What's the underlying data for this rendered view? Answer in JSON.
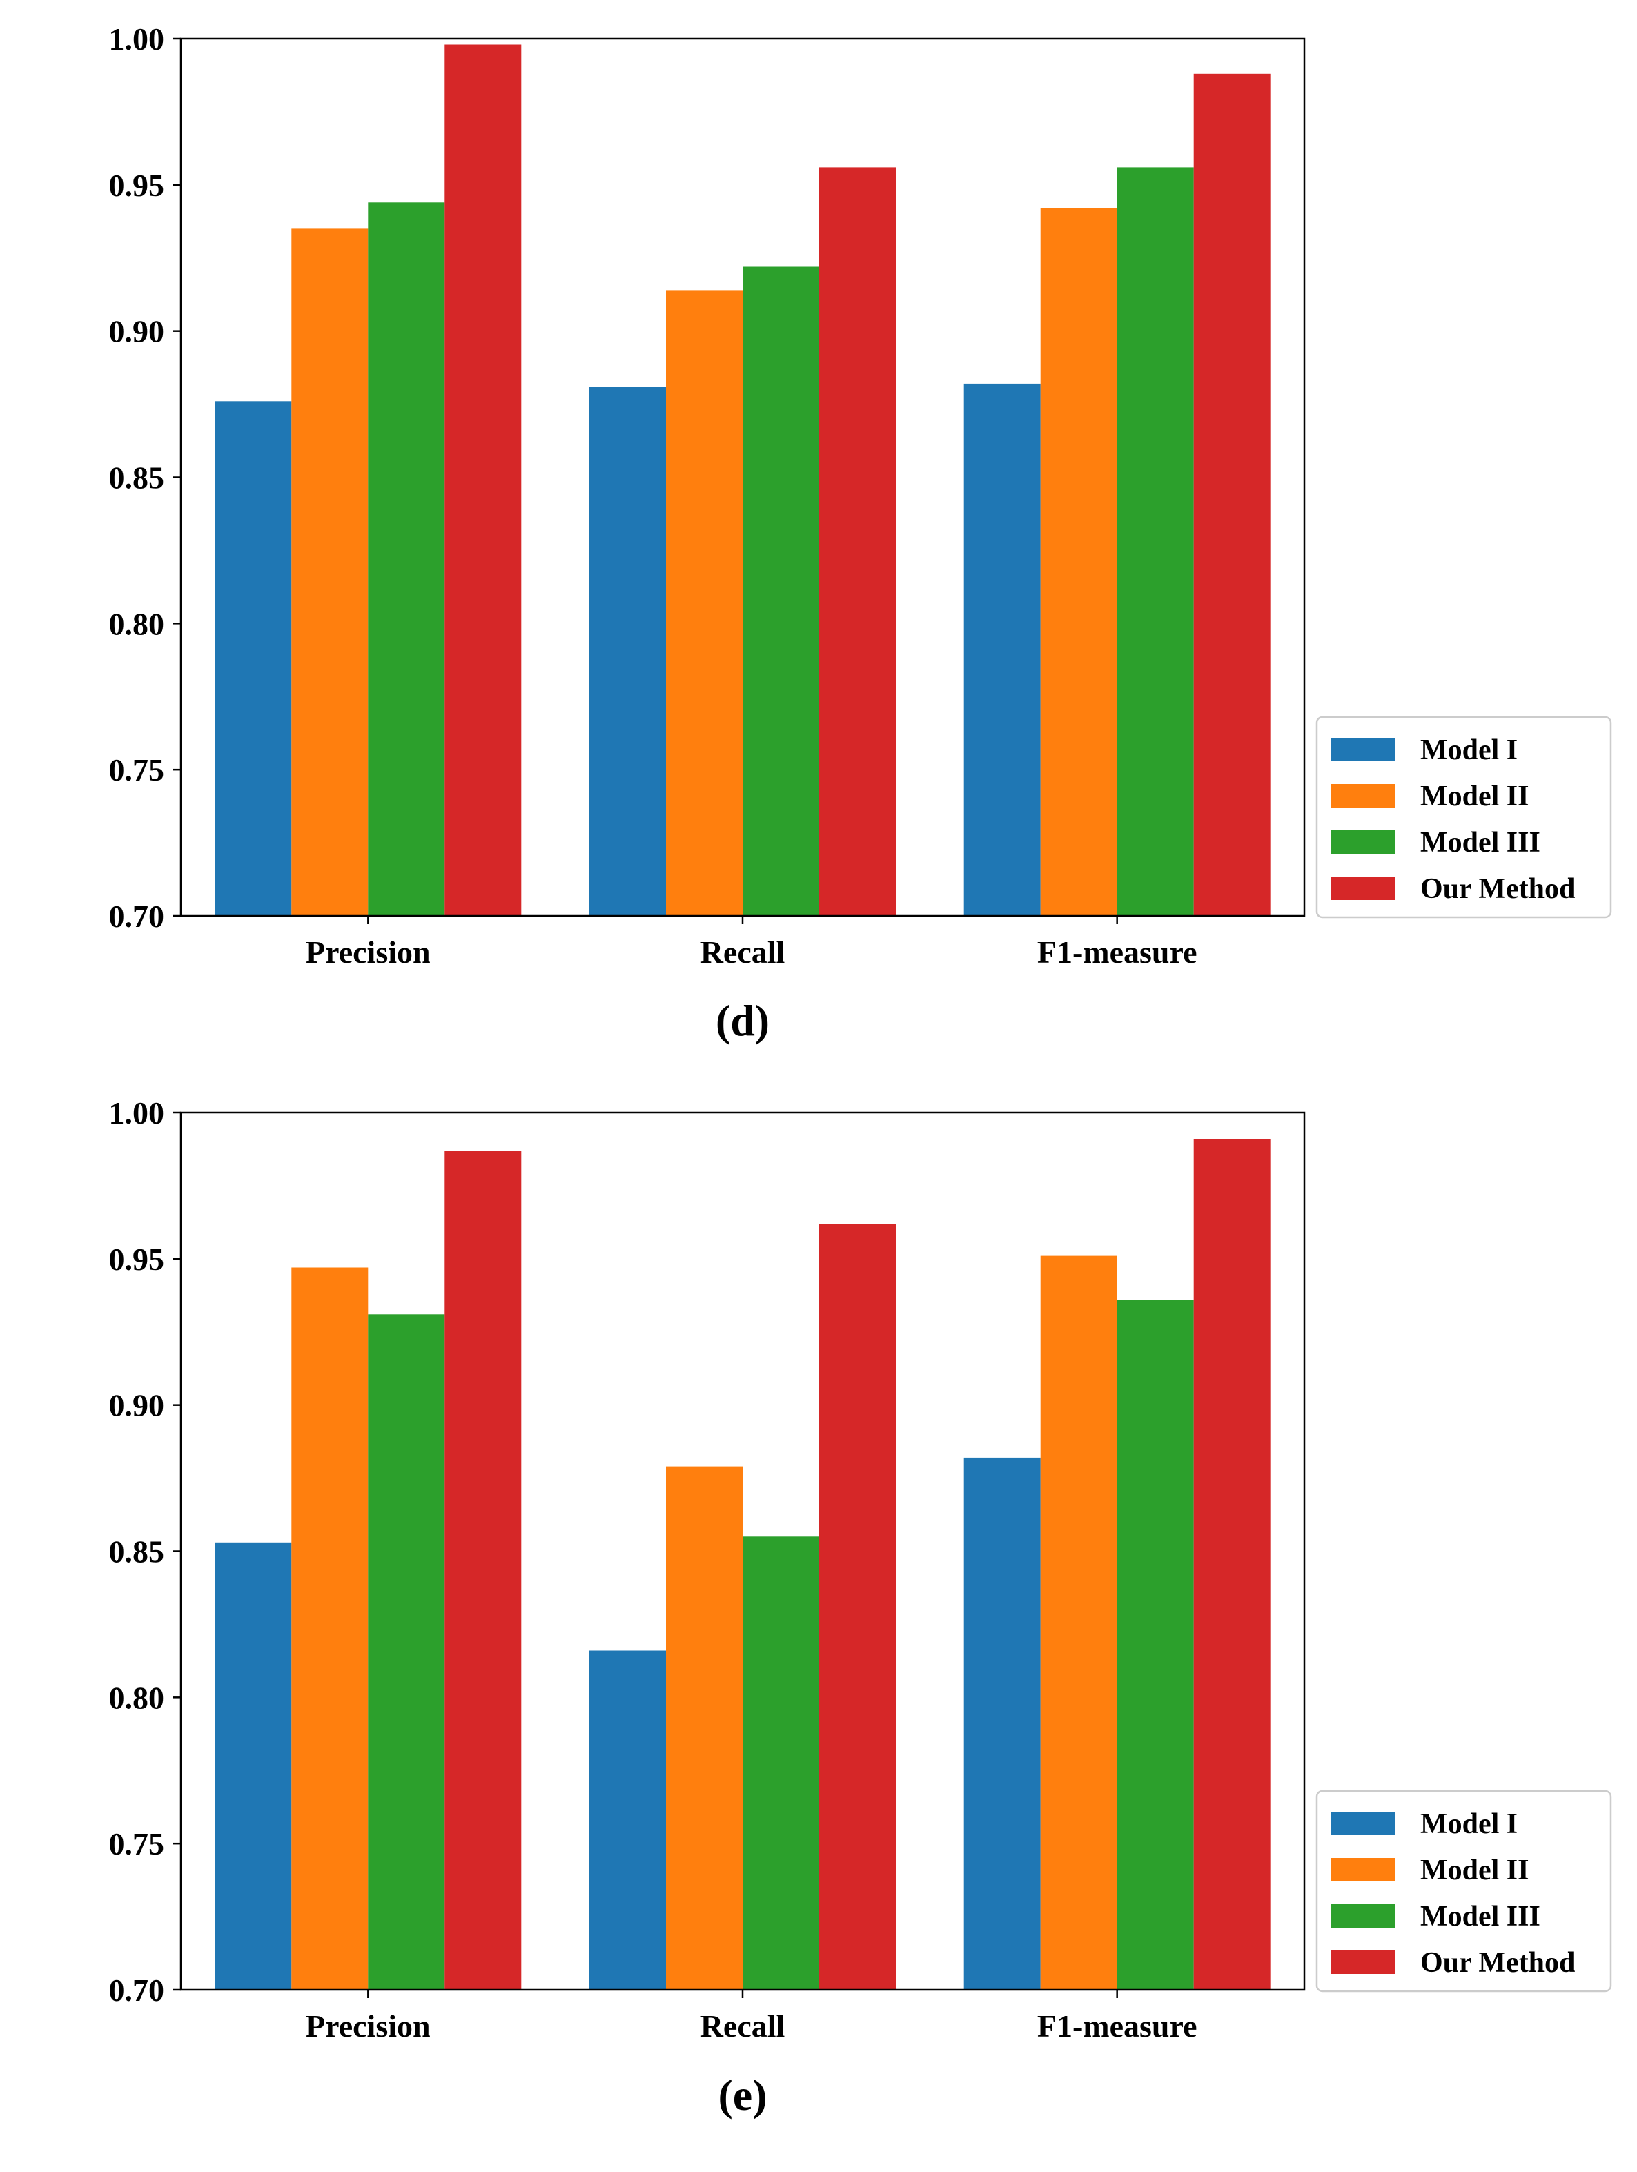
{
  "chart_data": [
    {
      "type": "bar",
      "panel_label": "(d)",
      "categories": [
        "Precision",
        "Recall",
        "F1-measure"
      ],
      "series": [
        {
          "name": "Model I",
          "color": "#1f77b4",
          "values": [
            0.876,
            0.881,
            0.882
          ]
        },
        {
          "name": "Model II",
          "color": "#ff7f0e",
          "values": [
            0.935,
            0.914,
            0.942
          ]
        },
        {
          "name": "Model III",
          "color": "#2ca02c",
          "values": [
            0.944,
            0.922,
            0.956
          ]
        },
        {
          "name": "Our Method",
          "color": "#d62728",
          "values": [
            0.998,
            0.956,
            0.988
          ]
        }
      ],
      "y_ticks": [
        "0.70",
        "0.75",
        "0.80",
        "0.85",
        "0.90",
        "0.95",
        "1.00"
      ],
      "ylim": [
        0.7,
        1.0
      ],
      "legend": "lower right, outside plot",
      "grid": false
    },
    {
      "type": "bar",
      "panel_label": "(e)",
      "categories": [
        "Precision",
        "Recall",
        "F1-measure"
      ],
      "series": [
        {
          "name": "Model I",
          "color": "#1f77b4",
          "values": [
            0.853,
            0.816,
            0.882
          ]
        },
        {
          "name": "Model II",
          "color": "#ff7f0e",
          "values": [
            0.947,
            0.879,
            0.951
          ]
        },
        {
          "name": "Model III",
          "color": "#2ca02c",
          "values": [
            0.931,
            0.855,
            0.936
          ]
        },
        {
          "name": "Our Method",
          "color": "#d62728",
          "values": [
            0.987,
            0.962,
            0.991
          ]
        }
      ],
      "y_ticks": [
        "0.70",
        "0.75",
        "0.80",
        "0.85",
        "0.90",
        "0.95",
        "1.00"
      ],
      "ylim": [
        0.7,
        1.0
      ],
      "legend": "lower right, outside plot",
      "grid": false
    }
  ]
}
